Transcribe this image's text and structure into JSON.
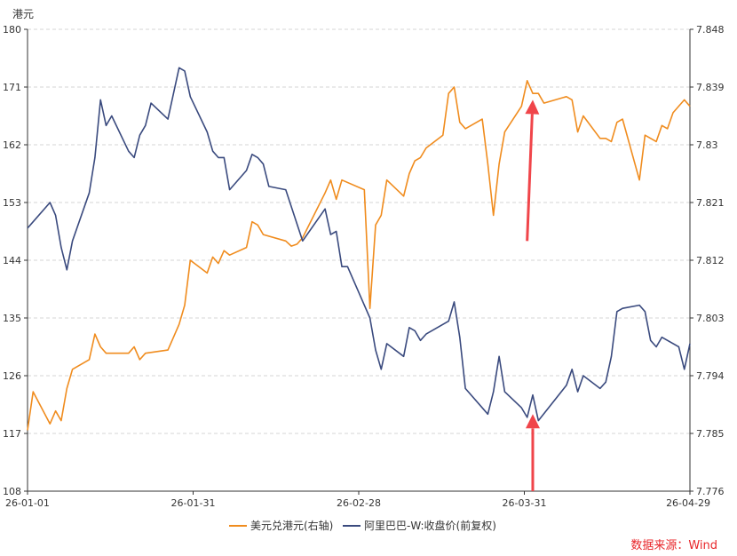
{
  "chart_data": {
    "type": "line",
    "unit_left": "港元",
    "source": "数据来源：Wind",
    "x_ticks": [
      "26-01-01",
      "26-01-31",
      "26-02-28",
      "26-03-31",
      "26-04-29"
    ],
    "left_axis": {
      "ylim": [
        108,
        180
      ],
      "ticks": [
        "180",
        "171",
        "162",
        "153",
        "144",
        "135",
        "126",
        "117",
        "108"
      ]
    },
    "right_axis": {
      "ylim": [
        7.776,
        7.848
      ],
      "ticks": [
        "7.848",
        "7.839",
        "7.83",
        "7.821",
        "7.812",
        "7.803",
        "7.794",
        "7.785",
        "7.776"
      ]
    },
    "grid": true,
    "legend_position": "bottom",
    "series": [
      {
        "name": "美元兑港元(右轴)",
        "axis": "right",
        "color": "#f08c1e",
        "points": [
          [
            "2026-01-01",
            7.7855
          ],
          [
            "2026-01-02",
            7.7915
          ],
          [
            "2026-01-05",
            7.7865
          ],
          [
            "2026-01-06",
            7.7885
          ],
          [
            "2026-01-07",
            7.787
          ],
          [
            "2026-01-08",
            7.792
          ],
          [
            "2026-01-09",
            7.795
          ],
          [
            "2026-01-12",
            7.7965
          ],
          [
            "2026-01-13",
            7.8005
          ],
          [
            "2026-01-14",
            7.7985
          ],
          [
            "2026-01-15",
            7.7975
          ],
          [
            "2026-01-19",
            7.7975
          ],
          [
            "2026-01-20",
            7.7985
          ],
          [
            "2026-01-21",
            7.7965
          ],
          [
            "2026-01-22",
            7.7975
          ],
          [
            "2026-01-26",
            7.798
          ],
          [
            "2026-01-27",
            7.8
          ],
          [
            "2026-01-28",
            7.802
          ],
          [
            "2026-01-29",
            7.805
          ],
          [
            "2026-01-30",
            7.812
          ],
          [
            "2026-02-02",
            7.81
          ],
          [
            "2026-02-03",
            7.8125
          ],
          [
            "2026-02-04",
            7.8115
          ],
          [
            "2026-02-05",
            7.8135
          ],
          [
            "2026-02-06",
            7.8128
          ],
          [
            "2026-02-09",
            7.814
          ],
          [
            "2026-02-10",
            7.818
          ],
          [
            "2026-02-11",
            7.8175
          ],
          [
            "2026-02-12",
            7.816
          ],
          [
            "2026-02-16",
            7.815
          ],
          [
            "2026-02-17",
            7.8142
          ],
          [
            "2026-02-18",
            7.8145
          ],
          [
            "2026-02-19",
            7.8155
          ],
          [
            "2026-02-23",
            7.8225
          ],
          [
            "2026-02-24",
            7.8245
          ],
          [
            "2026-02-25",
            7.8215
          ],
          [
            "2026-02-26",
            7.8245
          ],
          [
            "2026-03-02",
            7.823
          ],
          [
            "2026-03-03",
            7.8045
          ],
          [
            "2026-03-04",
            7.8175
          ],
          [
            "2026-03-05",
            7.819
          ],
          [
            "2026-03-06",
            7.8245
          ],
          [
            "2026-03-09",
            7.822
          ],
          [
            "2026-03-10",
            7.8255
          ],
          [
            "2026-03-11",
            7.8275
          ],
          [
            "2026-03-12",
            7.828
          ],
          [
            "2026-03-13",
            7.8295
          ],
          [
            "2026-03-16",
            7.8315
          ],
          [
            "2026-03-17",
            7.838
          ],
          [
            "2026-03-18",
            7.839
          ],
          [
            "2026-03-19",
            7.8335
          ],
          [
            "2026-03-20",
            7.8325
          ],
          [
            "2026-03-23",
            7.834
          ],
          [
            "2026-03-24",
            7.827
          ],
          [
            "2026-03-25",
            7.819
          ],
          [
            "2026-03-26",
            7.827
          ],
          [
            "2026-03-27",
            7.832
          ],
          [
            "2026-03-30",
            7.836
          ],
          [
            "2026-03-31",
            7.84
          ],
          [
            "2026-04-01",
            7.838
          ],
          [
            "2026-04-02",
            7.838
          ],
          [
            "2026-04-03",
            7.8365
          ],
          [
            "2026-04-07",
            7.8375
          ],
          [
            "2026-04-08",
            7.837
          ],
          [
            "2026-04-09",
            7.832
          ],
          [
            "2026-04-10",
            7.8345
          ],
          [
            "2026-04-13",
            7.831
          ],
          [
            "2026-04-14",
            7.831
          ],
          [
            "2026-04-15",
            7.8305
          ],
          [
            "2026-04-16",
            7.8335
          ],
          [
            "2026-04-17",
            7.834
          ],
          [
            "2026-04-20",
            7.8245
          ],
          [
            "2026-04-21",
            7.8315
          ],
          [
            "2026-04-23",
            7.8305
          ],
          [
            "2026-04-24",
            7.833
          ],
          [
            "2026-04-25",
            7.8325
          ],
          [
            "2026-04-26",
            7.835
          ],
          [
            "2026-04-28",
            7.837
          ],
          [
            "2026-04-29",
            7.836
          ]
        ]
      },
      {
        "name": "阿里巴巴-W:收盘价(前复权)",
        "axis": "left",
        "color": "#3a4a7e",
        "points": [
          [
            "2026-01-01",
            149
          ],
          [
            "2026-01-02",
            150
          ],
          [
            "2026-01-05",
            153
          ],
          [
            "2026-01-06",
            151
          ],
          [
            "2026-01-07",
            146
          ],
          [
            "2026-01-08",
            142.5
          ],
          [
            "2026-01-09",
            147
          ],
          [
            "2026-01-12",
            154.5
          ],
          [
            "2026-01-13",
            160
          ],
          [
            "2026-01-14",
            169
          ],
          [
            "2026-01-15",
            165
          ],
          [
            "2026-01-16",
            166.5
          ],
          [
            "2026-01-19",
            161
          ],
          [
            "2026-01-20",
            160
          ],
          [
            "2026-01-21",
            163.5
          ],
          [
            "2026-01-22",
            165
          ],
          [
            "2026-01-23",
            168.5
          ],
          [
            "2026-01-26",
            166
          ],
          [
            "2026-01-27",
            170
          ],
          [
            "2026-01-28",
            174
          ],
          [
            "2026-01-29",
            173.5
          ],
          [
            "2026-01-30",
            169.5
          ],
          [
            "2026-02-02",
            164
          ],
          [
            "2026-02-03",
            161
          ],
          [
            "2026-02-04",
            160
          ],
          [
            "2026-02-05",
            160
          ],
          [
            "2026-02-06",
            155
          ],
          [
            "2026-02-09",
            158
          ],
          [
            "2026-02-10",
            160.5
          ],
          [
            "2026-02-11",
            160
          ],
          [
            "2026-02-12",
            159
          ],
          [
            "2026-02-13",
            155.5
          ],
          [
            "2026-02-16",
            155
          ],
          [
            "2026-02-19",
            147
          ],
          [
            "2026-02-23",
            152
          ],
          [
            "2026-02-24",
            148
          ],
          [
            "2026-02-25",
            148.5
          ],
          [
            "2026-02-26",
            143
          ],
          [
            "2026-02-27",
            143
          ],
          [
            "2026-03-02",
            137
          ],
          [
            "2026-03-03",
            135
          ],
          [
            "2026-03-04",
            130
          ],
          [
            "2026-03-05",
            127
          ],
          [
            "2026-03-06",
            131
          ],
          [
            "2026-03-09",
            129
          ],
          [
            "2026-03-10",
            133.5
          ],
          [
            "2026-03-11",
            133
          ],
          [
            "2026-03-12",
            131.5
          ],
          [
            "2026-03-13",
            132.5
          ],
          [
            "2026-03-17",
            134.5
          ],
          [
            "2026-03-18",
            137.5
          ],
          [
            "2026-03-19",
            132
          ],
          [
            "2026-03-20",
            124
          ],
          [
            "2026-03-24",
            120
          ],
          [
            "2026-03-25",
            123.5
          ],
          [
            "2026-03-26",
            129
          ],
          [
            "2026-03-27",
            123.5
          ],
          [
            "2026-03-30",
            121
          ],
          [
            "2026-03-31",
            119.5
          ],
          [
            "2026-04-01",
            123
          ],
          [
            "2026-04-02",
            119
          ],
          [
            "2026-04-07",
            124.5
          ],
          [
            "2026-04-08",
            127
          ],
          [
            "2026-04-09",
            123.5
          ],
          [
            "2026-04-10",
            126
          ],
          [
            "2026-04-13",
            124
          ],
          [
            "2026-04-14",
            125
          ],
          [
            "2026-04-15",
            129
          ],
          [
            "2026-04-16",
            136
          ],
          [
            "2026-04-17",
            136.5
          ],
          [
            "2026-04-20",
            137
          ],
          [
            "2026-04-21",
            136
          ],
          [
            "2026-04-22",
            131.5
          ],
          [
            "2026-04-23",
            130.5
          ],
          [
            "2026-04-24",
            132
          ],
          [
            "2026-04-27",
            130.5
          ],
          [
            "2026-04-28",
            127
          ],
          [
            "2026-04-29",
            131
          ]
        ]
      }
    ],
    "annotations": [
      {
        "type": "arrow",
        "color": "#f0454a",
        "from": [
          "2026-03-31",
          7.815
        ],
        "to": [
          "2026-04-01",
          7.837
        ]
      },
      {
        "type": "arrow",
        "color": "#f0454a",
        "from": [
          "2026-04-01",
          108
        ],
        "to": [
          "2026-04-01",
          120
        ]
      }
    ]
  }
}
